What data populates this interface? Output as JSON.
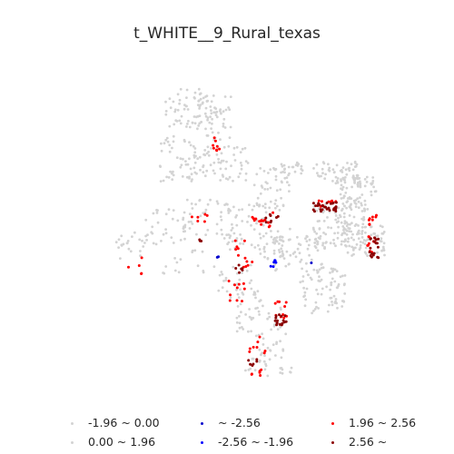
{
  "title": "t_WHITE__9_Rural_texas",
  "colors": {
    "neutral": "#d3d3d3",
    "cold_strong": "#0000cc",
    "cold_weak": "#0000ff",
    "hot_weak": "#ff0000",
    "hot_strong": "#8b0000"
  },
  "legend": {
    "items": [
      {
        "label": "-1.96 ~ 0.00",
        "color": "#d3d3d3"
      },
      {
        "label": "~ -2.56",
        "color": "#0000cc"
      },
      {
        "label": "1.96 ~ 2.56",
        "color": "#ff0000"
      },
      {
        "label": "0.00 ~ 1.96",
        "color": "#d3d3d3"
      },
      {
        "label": "-2.56 ~ -1.96",
        "color": "#0000ff"
      },
      {
        "label": "2.56 ~",
        "color": "#8b0000"
      }
    ]
  }
}
